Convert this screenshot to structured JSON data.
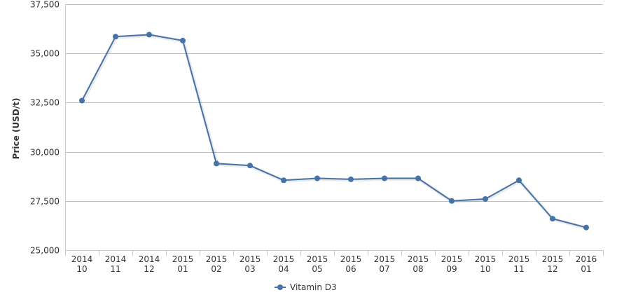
{
  "chart_data": {
    "type": "line",
    "title": "",
    "xlabel": "",
    "ylabel": "Price (USD/t)",
    "ylim": [
      25000,
      37500
    ],
    "yticks": [
      "25,000",
      "27,500",
      "30,000",
      "32,500",
      "35,000",
      "37,500"
    ],
    "ytick_values": [
      25000,
      27500,
      30000,
      32500,
      35000,
      37500
    ],
    "grid": true,
    "legend_position": "bottom-center",
    "categories": [
      [
        "2014",
        "10"
      ],
      [
        "2014",
        "11"
      ],
      [
        "2014",
        "12"
      ],
      [
        "2015",
        "01"
      ],
      [
        "2015",
        "02"
      ],
      [
        "2015",
        "03"
      ],
      [
        "2015",
        "04"
      ],
      [
        "2015",
        "05"
      ],
      [
        "2015",
        "06"
      ],
      [
        "2015",
        "07"
      ],
      [
        "2015",
        "08"
      ],
      [
        "2015",
        "09"
      ],
      [
        "2015",
        "10"
      ],
      [
        "2015",
        "11"
      ],
      [
        "2015",
        "12"
      ],
      [
        "2016",
        "01"
      ]
    ],
    "series": [
      {
        "name": "Vitamin D3",
        "color": "#4572a7",
        "values": [
          32600,
          35850,
          35950,
          35650,
          29400,
          29300,
          28550,
          28650,
          28600,
          28650,
          28650,
          27500,
          27600,
          28550,
          26600,
          26150
        ]
      }
    ]
  }
}
